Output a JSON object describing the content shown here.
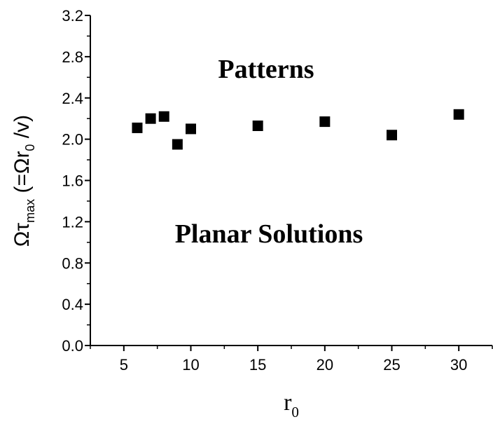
{
  "chart_data": {
    "type": "scatter",
    "x": [
      6,
      7,
      8,
      9,
      10,
      15,
      20,
      25,
      30
    ],
    "y": [
      2.11,
      2.2,
      2.22,
      1.95,
      2.1,
      2.13,
      2.17,
      2.04,
      2.24
    ],
    "xlim": [
      2.5,
      32.5
    ],
    "ylim": [
      0.0,
      3.2
    ],
    "x_ticks": [
      5,
      10,
      15,
      20,
      25,
      30
    ],
    "y_ticks": [
      0.0,
      0.4,
      0.8,
      1.2,
      1.6,
      2.0,
      2.4,
      2.8,
      3.2
    ],
    "x_tick_labels": [
      "5",
      "10",
      "15",
      "20",
      "25",
      "30"
    ],
    "y_tick_labels": [
      "0.0",
      "0.4",
      "0.8",
      "1.2",
      "1.6",
      "2.0",
      "2.4",
      "2.8",
      "3.2"
    ],
    "xlabel": {
      "base": "r",
      "sub": "0"
    },
    "ylabel": {
      "part1": "Ωτ",
      "sub1": "max",
      "part2": " (=Ωr",
      "sub2": "0",
      "part3": " /v)"
    },
    "annotations": [
      "Patterns",
      "Planar Solutions"
    ],
    "marker": "square",
    "marker_color": "#000000",
    "grid": false,
    "legend": "none"
  }
}
